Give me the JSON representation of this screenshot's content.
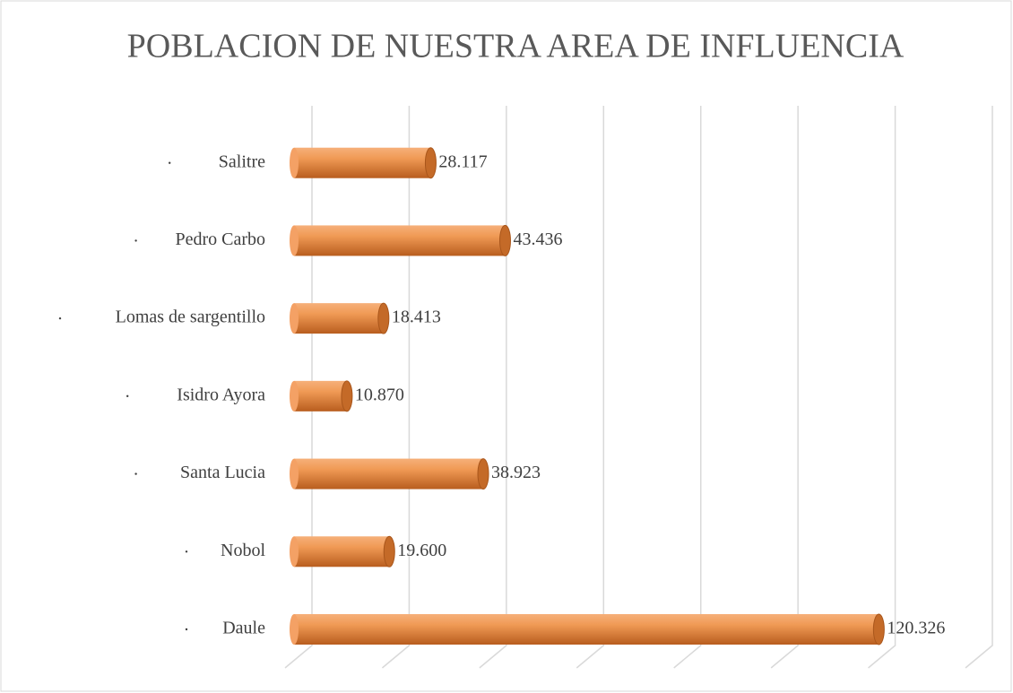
{
  "chart_data": {
    "type": "bar",
    "orientation": "horizontal",
    "title": "POBLACION DE NUESTRA AREA DE INFLUENCIA",
    "categories": [
      "Daule",
      "Nobol",
      "Santa Lucia",
      "Isidro Ayora",
      "Lomas de sargentillo",
      "Pedro Carbo",
      "Salitre"
    ],
    "values": [
      120326,
      19600,
      38923,
      10870,
      18413,
      43436,
      28117
    ],
    "value_labels": [
      "120.326",
      "19.600",
      "38.923",
      "10.870",
      "18.413",
      "43.436",
      "28.117"
    ],
    "color": "#ed7d31",
    "xlim": [
      0,
      140000
    ],
    "xticks": [
      0,
      20000,
      40000,
      60000,
      80000,
      100000,
      120000,
      140000
    ],
    "grid": true
  }
}
